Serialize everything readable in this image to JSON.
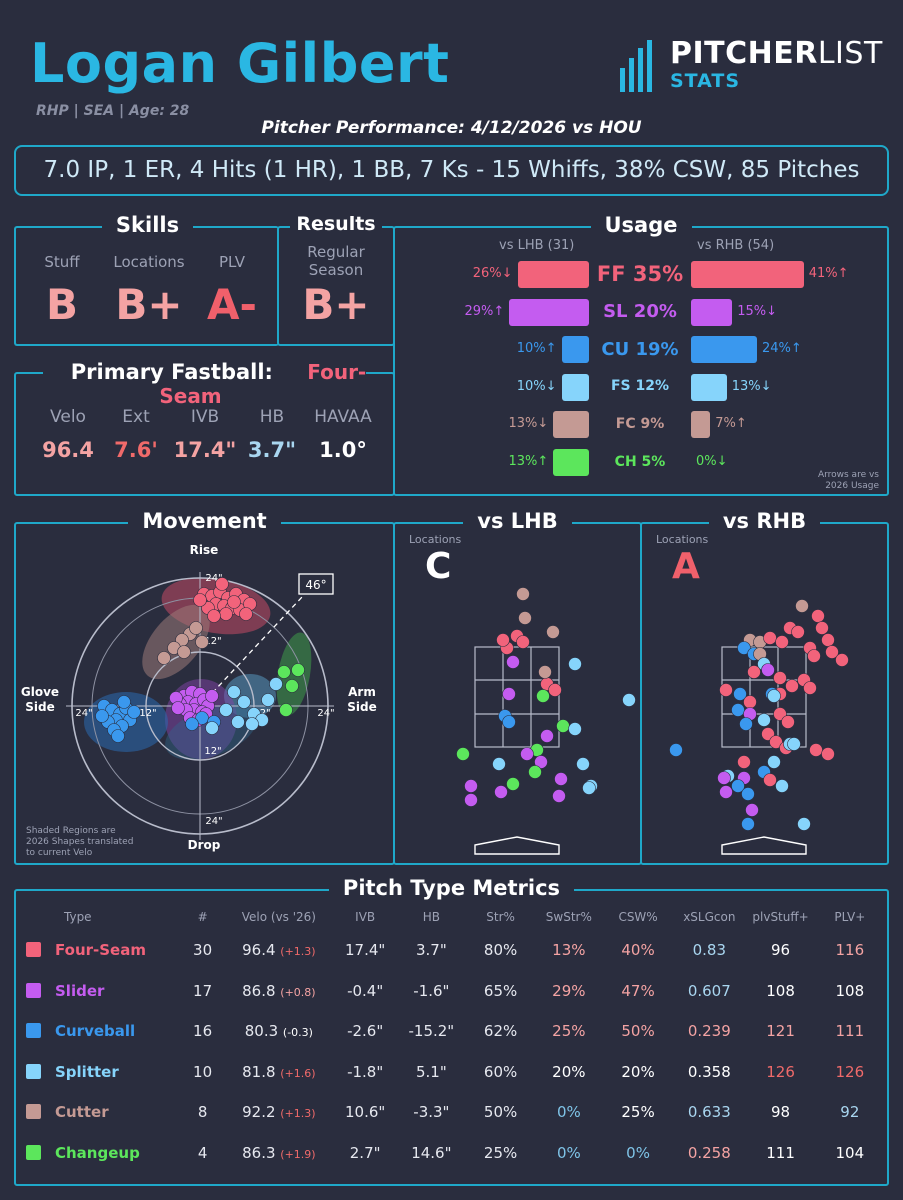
{
  "header": {
    "name": "Logan Gilbert",
    "meta": "RHP | SEA | Age: 28",
    "perf_title": "Pitcher Performance: 4/12/2026 vs HOU",
    "summary": "7.0 IP, 1 ER, 4 Hits (1 HR), 1 BB, 7 Ks - 15 Whiffs, 38% CSW, 85 Pitches",
    "logo_main_1": "PITCHER",
    "logo_main_2": "LIST",
    "logo_sub": "STATS"
  },
  "skills": {
    "title": "Skills",
    "items": [
      {
        "label": "Stuff",
        "grade": "B",
        "color": "#f4a3a3"
      },
      {
        "label": "Locations",
        "grade": "B+",
        "color": "#f4a3a3"
      },
      {
        "label": "PLV",
        "grade": "A-",
        "color": "#f0606b"
      }
    ]
  },
  "results": {
    "title": "Results",
    "label_1": "Regular",
    "label_2": "Season",
    "grade": "B+",
    "color": "#f4a3a3"
  },
  "primary_fastball": {
    "title_prefix": "Primary Fastball:",
    "pitch": "Four-Seam",
    "metrics": [
      {
        "label": "Velo",
        "value": "96.4",
        "color": "#f4a3a3"
      },
      {
        "label": "Ext",
        "value": "7.6'",
        "color": "#f06a6a"
      },
      {
        "label": "IVB",
        "value": "17.4\"",
        "color": "#f4a3a3"
      },
      {
        "label": "HB",
        "value": "3.7\"",
        "color": "#a9d6f0"
      },
      {
        "label": "HAVAA",
        "value": "1.0°",
        "color": "#ffffff"
      }
    ]
  },
  "usage": {
    "title": "Usage",
    "lhb_header": "vs LHB (31)",
    "rhb_header": "vs RHB (54)",
    "footnote_1": "Arrows are vs",
    "footnote_2": "2026 Usage",
    "rows": [
      {
        "name": "FF 35%",
        "lhb": 26,
        "lhb_label": "26%↓",
        "rhb": 41,
        "rhb_label": "41%↑",
        "color": "#f2637b"
      },
      {
        "name": "SL 20%",
        "lhb": 29,
        "lhb_label": "29%↑",
        "rhb": 15,
        "rhb_label": "15%↓",
        "color": "#c45cf0"
      },
      {
        "name": "CU 19%",
        "lhb": 10,
        "lhb_label": "10%↑",
        "rhb": 24,
        "rhb_label": "24%↑",
        "color": "#3a98ee"
      },
      {
        "name": "FS 12%",
        "lhb": 10,
        "lhb_label": "10%↓",
        "rhb": 13,
        "rhb_label": "13%↓",
        "color": "#86d4fb"
      },
      {
        "name": "FC 9%",
        "lhb": 13,
        "lhb_label": "13%↓",
        "rhb": 7,
        "rhb_label": "7%↑",
        "color": "#c49a94"
      },
      {
        "name": "CH 5%",
        "lhb": 13,
        "lhb_label": "13%↑",
        "rhb": 0,
        "rhb_label": "0%↓",
        "color": "#5ce65c"
      }
    ]
  },
  "movement": {
    "title": "Movement",
    "rise": "Rise",
    "drop": "Drop",
    "glove_1": "Glove",
    "glove_2": "Side",
    "arm_1": "Arm",
    "arm_2": "Side",
    "arm_angle": "46°",
    "ring_labels": [
      "24\"",
      "12\"",
      "24\"",
      "12\"",
      "24\"",
      "12\"",
      "24\"",
      "12\""
    ],
    "note_1": "Shaded Regions are",
    "note_2": "2026 Shapes translated",
    "note_3": "to current Velo"
  },
  "vs_lhb": {
    "title": "vs LHB",
    "label": "Locations",
    "grade": "C",
    "grade_color": "#ffffff"
  },
  "vs_rhb": {
    "title": "vs RHB",
    "label": "Locations",
    "grade": "A",
    "grade_color": "#f0606b"
  },
  "metrics": {
    "title": "Pitch Type Metrics",
    "headers": [
      "Type",
      "#",
      "Velo (vs '26)",
      "IVB",
      "HB",
      "Str%",
      "SwStr%",
      "CSW%",
      "xSLGcon",
      "plvStuff+",
      "PLV+"
    ],
    "rows": [
      {
        "type": "Four-Seam",
        "color": "#f2637b",
        "n": "30",
        "velo": "96.4",
        "diff": "(+1.3)",
        "diff_color": "#f06a6a",
        "ivb": "17.4\"",
        "hb": "3.7\"",
        "str": "80%",
        "swstr": "13%",
        "swstr_color": "#f4a3a3",
        "csw": "40%",
        "csw_color": "#f4a3a3",
        "xslg": "0.83",
        "xslg_color": "#a9d6f0",
        "stuff": "96",
        "stuff_color": "#ffffff",
        "plv": "116",
        "plv_color": "#f4a3a3"
      },
      {
        "type": "Slider",
        "color": "#c45cf0",
        "n": "17",
        "velo": "86.8",
        "diff": "(+0.8)",
        "diff_color": "#f4a3a3",
        "ivb": "-0.4\"",
        "hb": "-1.6\"",
        "str": "65%",
        "swstr": "29%",
        "swstr_color": "#f4a3a3",
        "csw": "47%",
        "csw_color": "#f4a3a3",
        "xslg": "0.607",
        "xslg_color": "#a9d6f0",
        "stuff": "108",
        "stuff_color": "#ffffff",
        "plv": "108",
        "plv_color": "#ffffff"
      },
      {
        "type": "Curveball",
        "color": "#3a98ee",
        "n": "16",
        "velo": "80.3",
        "diff": "(-0.3)",
        "diff_color": "#ffffff",
        "ivb": "-2.6\"",
        "hb": "-15.2\"",
        "str": "62%",
        "swstr": "25%",
        "swstr_color": "#f4a3a3",
        "csw": "50%",
        "csw_color": "#f4a3a3",
        "xslg": "0.239",
        "xslg_color": "#f4a3a3",
        "stuff": "121",
        "stuff_color": "#f4a3a3",
        "plv": "111",
        "plv_color": "#f4a3a3"
      },
      {
        "type": "Splitter",
        "color": "#86d4fb",
        "n": "10",
        "velo": "81.8",
        "diff": "(+1.6)",
        "diff_color": "#f06a6a",
        "ivb": "-1.8\"",
        "hb": "5.1\"",
        "str": "60%",
        "swstr": "20%",
        "swstr_color": "#ffffff",
        "csw": "20%",
        "csw_color": "#ffffff",
        "xslg": "0.358",
        "xslg_color": "#ffffff",
        "stuff": "126",
        "stuff_color": "#f06a6a",
        "plv": "126",
        "plv_color": "#f06a6a"
      },
      {
        "type": "Cutter",
        "color": "#c49a94",
        "n": "8",
        "velo": "92.2",
        "diff": "(+1.3)",
        "diff_color": "#f06a6a",
        "ivb": "10.6\"",
        "hb": "-3.3\"",
        "str": "50%",
        "swstr": "0%",
        "swstr_color": "#7fc4e8",
        "csw": "25%",
        "csw_color": "#ffffff",
        "xslg": "0.633",
        "xslg_color": "#a9d6f0",
        "stuff": "98",
        "stuff_color": "#ffffff",
        "plv": "92",
        "plv_color": "#a9d6f0"
      },
      {
        "type": "Changeup",
        "color": "#5ce65c",
        "n": "4",
        "velo": "86.3",
        "diff": "(+1.9)",
        "diff_color": "#f06a6a",
        "ivb": "2.7\"",
        "hb": "14.6\"",
        "str": "25%",
        "swstr": "0%",
        "swstr_color": "#7fc4e8",
        "csw": "0%",
        "csw_color": "#7fc4e8",
        "xslg": "0.258",
        "xslg_color": "#f4a3a3",
        "stuff": "111",
        "stuff_color": "#ffffff",
        "plv": "104",
        "plv_color": "#ffffff"
      }
    ]
  }
}
